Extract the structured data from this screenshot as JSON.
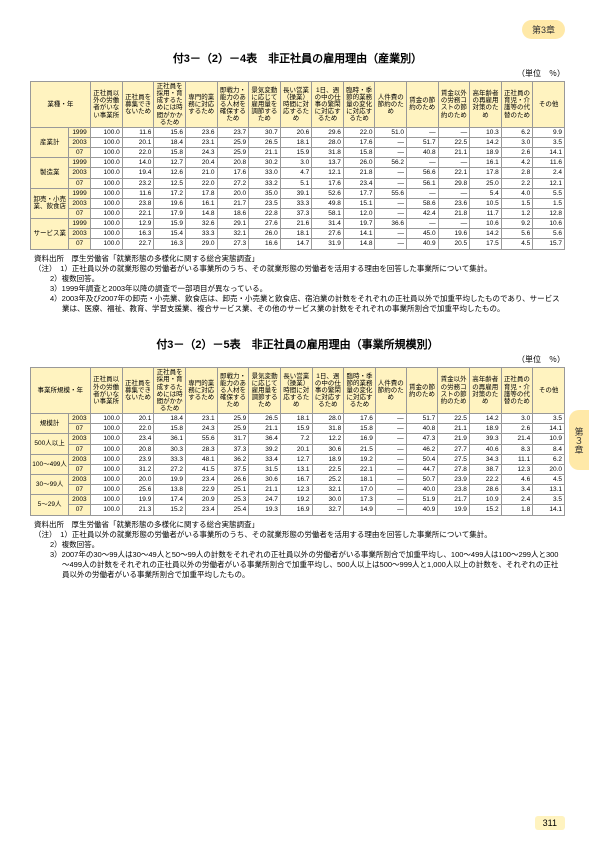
{
  "chapter_tab": "第3章",
  "side_tab": "第３章",
  "page_number": "311",
  "unit_label": "（単位　％）",
  "table1": {
    "title": "付3－（2）－4表　非正社員の雇用理由（産業別）",
    "row_header_label": "業種・年",
    "col_headers": [
      "正社員以外の労働者がいない事業所",
      "正社員を募集できないため",
      "正社員を採用・育成するためには時間がかかるため",
      "専門的業務に対応するため",
      "即戦力・能力のある人材を確保するため",
      "景気変動に応じて雇用量を調節するため",
      "長い営業（操業）時間に対応するため",
      "1日、週の中の仕事の繁閑に対応するため",
      "臨時・季節的業務量の変化に対応するため",
      "人件費の節約のため",
      "賃金の節約のため",
      "賃金以外の労務コストの節約のため",
      "高年齢者の再雇用対策のため",
      "正社員の育児・介護等の代替のため",
      "その他"
    ],
    "groups": [
      {
        "name": "産業計",
        "rows": [
          {
            "y": "1999",
            "c": [
              "100.0",
              "11.6",
              "15.6",
              "23.6",
              "23.7",
              "30.7",
              "20.6",
              "29.6",
              "22.0",
              "51.0",
              "—",
              "—",
              "10.3",
              "6.2",
              "9.9"
            ]
          },
          {
            "y": "2003",
            "c": [
              "100.0",
              "20.1",
              "18.4",
              "23.1",
              "25.9",
              "26.5",
              "18.1",
              "28.0",
              "17.6",
              "—",
              "51.7",
              "22.5",
              "14.2",
              "3.0",
              "3.5"
            ]
          },
          {
            "y": "07",
            "c": [
              "100.0",
              "22.0",
              "15.8",
              "24.3",
              "25.9",
              "21.1",
              "15.9",
              "31.8",
              "15.8",
              "—",
              "40.8",
              "21.1",
              "18.9",
              "2.6",
              "14.1"
            ]
          }
        ]
      },
      {
        "name": "製造業",
        "rows": [
          {
            "y": "1999",
            "c": [
              "100.0",
              "14.0",
              "12.7",
              "20.4",
              "20.8",
              "30.2",
              "3.0",
              "13.7",
              "26.0",
              "56.2",
              "—",
              "—",
              "16.1",
              "4.2",
              "11.6"
            ]
          },
          {
            "y": "2003",
            "c": [
              "100.0",
              "19.4",
              "12.6",
              "21.0",
              "17.6",
              "33.0",
              "4.7",
              "12.1",
              "21.8",
              "—",
              "56.6",
              "22.1",
              "17.8",
              "2.8",
              "2.4"
            ]
          },
          {
            "y": "07",
            "c": [
              "100.0",
              "23.2",
              "12.5",
              "22.0",
              "27.2",
              "33.2",
              "5.1",
              "17.6",
              "23.4",
              "—",
              "56.1",
              "29.8",
              "25.0",
              "2.2",
              "12.1"
            ]
          }
        ]
      },
      {
        "name": "卸売・小売業、飲食店",
        "rows": [
          {
            "y": "1999",
            "c": [
              "100.0",
              "11.6",
              "17.2",
              "17.8",
              "20.0",
              "35.0",
              "39.1",
              "52.6",
              "17.7",
              "55.6",
              "—",
              "—",
              "5.4",
              "4.0",
              "5.5"
            ]
          },
          {
            "y": "2003",
            "c": [
              "100.0",
              "23.8",
              "19.6",
              "16.1",
              "21.7",
              "23.5",
              "33.3",
              "49.8",
              "15.1",
              "—",
              "58.6",
              "23.6",
              "10.5",
              "1.5",
              "1.5"
            ]
          },
          {
            "y": "07",
            "c": [
              "100.0",
              "22.1",
              "17.9",
              "14.8",
              "18.6",
              "22.8",
              "37.3",
              "58.1",
              "12.0",
              "—",
              "42.4",
              "21.8",
              "11.7",
              "1.2",
              "12.8"
            ]
          }
        ]
      },
      {
        "name": "サービス業",
        "rows": [
          {
            "y": "1999",
            "c": [
              "100.0",
              "12.9",
              "15.9",
              "32.6",
              "29.1",
              "27.6",
              "21.6",
              "31.4",
              "19.7",
              "36.6",
              "—",
              "—",
              "10.6",
              "9.2",
              "10.6"
            ]
          },
          {
            "y": "2003",
            "c": [
              "100.0",
              "16.3",
              "15.4",
              "33.3",
              "32.1",
              "26.0",
              "18.1",
              "27.6",
              "14.1",
              "—",
              "45.0",
              "19.6",
              "14.2",
              "5.6",
              "5.6"
            ]
          },
          {
            "y": "07",
            "c": [
              "100.0",
              "22.7",
              "16.3",
              "29.0",
              "27.3",
              "16.6",
              "14.7",
              "31.9",
              "14.8",
              "—",
              "40.9",
              "20.5",
              "17.5",
              "4.5",
              "15.7"
            ]
          }
        ]
      }
    ],
    "source": "資料出所　厚生労働省「就業形態の多様化に関する総合実態調査」",
    "notes": [
      "（注）　1）正社員以外の就業形態の労働者がいる事業所のうち、その就業形態の労働者を活用する理由を回答した事業所について集計。",
      "2）複数回答。",
      "3）1999年調査と2003年以降の調査で一部項目が異なっている。",
      "4）2003年及び2007年の卸売・小売業、飲食店は、卸売・小売業と飲食店、宿泊業の計数をそれぞれの正社員以外で加重平均したものであり、サービス業は、医療、福祉、教育、学習支援業、複合サービス業、その他のサービス業の計数をそれぞれの事業所割合で加重平均したもの。"
    ]
  },
  "table2": {
    "title": "付3－（2）－5表　非正社員の雇用理由（事業所規模別）",
    "row_header_label": "事業所規模・年",
    "col_headers": [
      "正社員以外の労働者がいない事業所",
      "正社員を募集できないため",
      "正社員を採用・育成するためには時間がかかるため",
      "専門的業務に対応するため",
      "即戦力・能力のある人材を確保するため",
      "景気変動に応じて雇用量を調節するため",
      "長い営業（操業）時間に対応するため",
      "1日、週の中の仕事の繁閑に対応するため",
      "臨時・季節的業務量の変化に対応するため",
      "人件費の節約のため",
      "賃金の節約のため",
      "賃金以外の労務コストの節約のため",
      "高年齢者の再雇用対策のため",
      "正社員の育児・介護等の代替のため",
      "その他"
    ],
    "groups": [
      {
        "name": "規模計",
        "rows": [
          {
            "y": "2003",
            "c": [
              "100.0",
              "20.1",
              "18.4",
              "23.1",
              "25.9",
              "26.5",
              "18.1",
              "28.0",
              "17.6",
              "—",
              "51.7",
              "22.5",
              "14.2",
              "3.0",
              "3.5"
            ]
          },
          {
            "y": "07",
            "c": [
              "100.0",
              "22.0",
              "15.8",
              "24.3",
              "25.9",
              "21.1",
              "15.9",
              "31.8",
              "15.8",
              "—",
              "40.8",
              "21.1",
              "18.9",
              "2.6",
              "14.1"
            ]
          }
        ]
      },
      {
        "name": "500人以上",
        "rows": [
          {
            "y": "2003",
            "c": [
              "100.0",
              "23.4",
              "36.1",
              "55.6",
              "31.7",
              "36.4",
              "7.2",
              "12.2",
              "16.9",
              "—",
              "47.3",
              "21.9",
              "39.3",
              "21.4",
              "10.9"
            ]
          },
          {
            "y": "07",
            "c": [
              "100.0",
              "20.8",
              "30.3",
              "28.3",
              "37.3",
              "39.2",
              "20.1",
              "30.6",
              "21.5",
              "—",
              "46.2",
              "27.7",
              "40.6",
              "8.3",
              "8.4"
            ]
          }
        ]
      },
      {
        "name": "100～499人",
        "rows": [
          {
            "y": "2003",
            "c": [
              "100.0",
              "23.9",
              "33.3",
              "48.1",
              "36.2",
              "33.4",
              "12.7",
              "18.9",
              "19.2",
              "—",
              "50.4",
              "27.5",
              "34.3",
              "11.1",
              "6.2"
            ]
          },
          {
            "y": "07",
            "c": [
              "100.0",
              "31.2",
              "27.2",
              "41.5",
              "37.5",
              "31.5",
              "13.1",
              "22.5",
              "22.1",
              "—",
              "44.7",
              "27.8",
              "38.7",
              "12.3",
              "20.0"
            ]
          }
        ]
      },
      {
        "name": "30～99人",
        "rows": [
          {
            "y": "2003",
            "c": [
              "100.0",
              "20.0",
              "19.9",
              "23.4",
              "26.6",
              "30.6",
              "16.7",
              "25.2",
              "18.1",
              "—",
              "50.7",
              "23.9",
              "22.2",
              "4.6",
              "4.5"
            ]
          },
          {
            "y": "07",
            "c": [
              "100.0",
              "25.6",
              "13.8",
              "22.9",
              "25.1",
              "21.1",
              "12.3",
              "32.1",
              "17.0",
              "—",
              "40.0",
              "23.8",
              "28.6",
              "3.4",
              "13.1"
            ]
          }
        ]
      },
      {
        "name": "5～29人",
        "rows": [
          {
            "y": "2003",
            "c": [
              "100.0",
              "19.9",
              "17.4",
              "20.9",
              "25.3",
              "24.7",
              "19.2",
              "30.0",
              "17.3",
              "—",
              "51.9",
              "21.7",
              "10.9",
              "2.4",
              "3.5"
            ]
          },
          {
            "y": "07",
            "c": [
              "100.0",
              "21.3",
              "15.2",
              "23.4",
              "25.4",
              "19.3",
              "16.9",
              "32.7",
              "14.9",
              "—",
              "40.9",
              "19.9",
              "15.2",
              "1.8",
              "14.1"
            ]
          }
        ]
      }
    ],
    "source": "資料出所　厚生労働省「就業形態の多様化に関する総合実態調査」",
    "notes": [
      "（注）　1）正社員以外の就業形態の労働者がいる事業所のうち、その就業形態の労働者を活用する理由を回答した事業所について集計。",
      "2）複数回答。",
      "3）2007年の30～99人は30～49人と50～99人の計数をそれぞれの正社員以外の労働者がいる事業所割合で加重平均し、100～499人は100～299人と300～499人の計数をそれぞれの正社員以外の労働者がいる事業所割合で加重平均し、500人以上は500～999人と1,000人以上の計数を、それぞれの正社員以外の労働者がいる事業所割合で加重平均したもの。"
    ]
  }
}
